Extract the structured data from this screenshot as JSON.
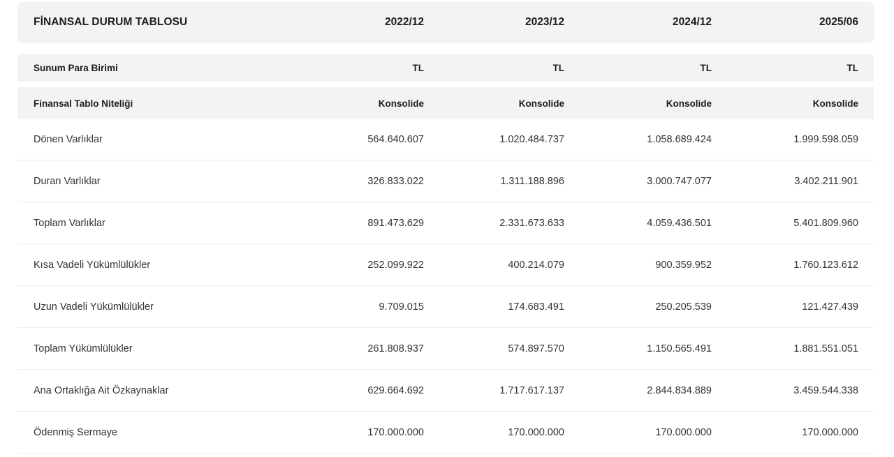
{
  "table": {
    "title": "FİNANSAL DURUM TABLOSU",
    "periods": [
      "2022/12",
      "2023/12",
      "2024/12",
      "2025/06"
    ],
    "meta_rows": [
      {
        "label": "Sunum Para Birimi",
        "values": [
          "TL",
          "TL",
          "TL",
          "TL"
        ]
      },
      {
        "label": "Finansal Tablo Niteliği",
        "values": [
          "Konsolide",
          "Konsolide",
          "Konsolide",
          "Konsolide"
        ]
      }
    ],
    "rows": [
      {
        "label": "Dönen Varlıklar",
        "values": [
          "564.640.607",
          "1.020.484.737",
          "1.058.689.424",
          "1.999.598.059"
        ]
      },
      {
        "label": "Duran Varlıklar",
        "values": [
          "326.833.022",
          "1.311.188.896",
          "3.000.747.077",
          "3.402.211.901"
        ]
      },
      {
        "label": "Toplam Varlıklar",
        "values": [
          "891.473.629",
          "2.331.673.633",
          "4.059.436.501",
          "5.401.809.960"
        ]
      },
      {
        "label": "Kısa Vadeli Yükümlülükler",
        "values": [
          "252.099.922",
          "400.214.079",
          "900.359.952",
          "1.760.123.612"
        ]
      },
      {
        "label": "Uzun Vadeli Yükümlülükler",
        "values": [
          "9.709.015",
          "174.683.491",
          "250.205.539",
          "121.427.439"
        ]
      },
      {
        "label": "Toplam Yükümlülükler",
        "values": [
          "261.808.937",
          "574.897.570",
          "1.150.565.491",
          "1.881.551.051"
        ]
      },
      {
        "label": "Ana Ortaklığa Ait Özkaynaklar",
        "values": [
          "629.664.692",
          "1.717.617.137",
          "2.844.834.889",
          "3.459.544.338"
        ]
      },
      {
        "label": "Ödenmiş Sermaye",
        "values": [
          "170.000.000",
          "170.000.000",
          "170.000.000",
          "170.000.000"
        ]
      }
    ]
  }
}
